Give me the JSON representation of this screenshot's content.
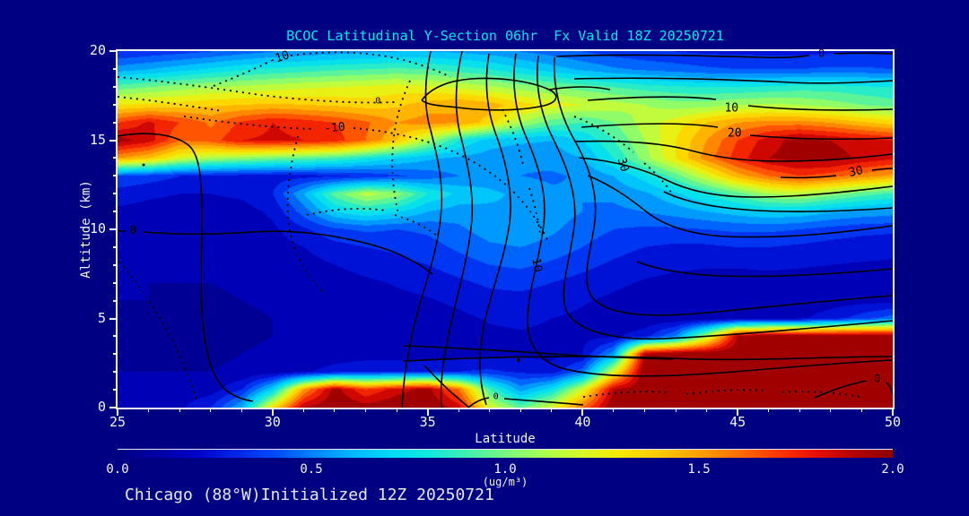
{
  "header": {
    "title": "BCOC Latitudinal Y-Section 06hr  Fx Valid 18Z 20250721",
    "title_color": "#00e8e8"
  },
  "footer": {
    "text": "Chicago (88°W)Initialized 12Z 20250721",
    "color": "#e9e9e9"
  },
  "colors": {
    "background": "#000082",
    "axis_text": "#f5f5f0",
    "frame": "#f2f2f2",
    "contour_line": "#000000"
  },
  "chart_data": {
    "type": "heatmap",
    "title": "BCOC Latitudinal Y-Section 06hr  Fx Valid 18Z 20250721",
    "xlabel": "Latitude",
    "ylabel": "Altitude (km)",
    "xlim": [
      25,
      50
    ],
    "ylim": [
      0,
      20
    ],
    "x_ticks": [
      25,
      30,
      35,
      40,
      45,
      50
    ],
    "x_minor_step": 1,
    "y_ticks": [
      0,
      5,
      10,
      15,
      20
    ],
    "y_minor_step": 1,
    "grid_lines": "off",
    "colorbar": {
      "min": 0.0,
      "max": 2.0,
      "tick_labels": [
        "0.0",
        "0.5",
        "1.0",
        "1.5",
        "2.0"
      ],
      "tick_values": [
        0.0,
        0.5,
        1.0,
        1.5,
        2.0
      ],
      "unit": "(ug/m³)",
      "position": "bottom"
    },
    "palette": [
      [
        0.0,
        "#000082"
      ],
      [
        0.2,
        "#0000c8"
      ],
      [
        0.4,
        "#0048ff"
      ],
      [
        0.5,
        "#0080ff"
      ],
      [
        0.6,
        "#00b4ff"
      ],
      [
        0.7,
        "#00d8f8"
      ],
      [
        0.8,
        "#10e8e0"
      ],
      [
        0.9,
        "#40f0b0"
      ],
      [
        1.0,
        "#78f880"
      ],
      [
        1.1,
        "#a8ff50"
      ],
      [
        1.2,
        "#d8f828"
      ],
      [
        1.3,
        "#f8e800"
      ],
      [
        1.4,
        "#ffc800"
      ],
      [
        1.5,
        "#ffa000"
      ],
      [
        1.6,
        "#ff7000"
      ],
      [
        1.7,
        "#ff3800"
      ],
      [
        1.8,
        "#e81000"
      ],
      [
        1.9,
        "#b40000"
      ],
      [
        2.0,
        "#8c0000"
      ]
    ],
    "field": {
      "units": "ug/m3",
      "lat_min": 25,
      "lat_max": 50,
      "lat_step": 1,
      "alt_max_km": 20,
      "alt_min_km": 0,
      "alt_step_km": 1,
      "order": "rows = altitude 20km (first) down to 0km (last); cols = latitude 25 to 50",
      "values": [
        [
          0.3,
          0.33,
          0.36,
          0.4,
          0.45,
          0.5,
          0.52,
          0.55,
          0.58,
          0.6,
          0.6,
          0.58,
          0.55,
          0.5,
          0.45,
          0.4,
          0.35,
          0.32,
          0.3,
          0.28,
          0.28,
          0.27,
          0.27,
          0.28,
          0.28,
          0.28
        ],
        [
          0.55,
          0.6,
          0.66,
          0.72,
          0.78,
          0.82,
          0.85,
          0.88,
          0.9,
          0.92,
          0.9,
          0.85,
          0.8,
          0.72,
          0.65,
          0.58,
          0.52,
          0.48,
          0.45,
          0.42,
          0.4,
          0.4,
          0.4,
          0.42,
          0.42,
          0.4
        ],
        [
          0.95,
          1.0,
          1.05,
          1.1,
          1.12,
          1.15,
          1.18,
          1.2,
          1.22,
          1.25,
          1.22,
          1.18,
          1.12,
          1.05,
          1.0,
          0.95,
          0.9,
          0.85,
          0.82,
          0.8,
          0.8,
          0.82,
          0.85,
          0.85,
          0.82,
          0.8
        ],
        [
          1.3,
          1.32,
          1.35,
          1.38,
          1.4,
          1.42,
          1.4,
          1.38,
          1.35,
          1.38,
          1.45,
          1.5,
          1.45,
          1.35,
          1.25,
          1.2,
          1.15,
          1.1,
          1.05,
          1.05,
          1.1,
          1.12,
          1.1,
          1.05,
          1.0,
          0.95
        ],
        [
          1.7,
          1.82,
          1.7,
          1.58,
          1.72,
          1.8,
          1.76,
          1.7,
          1.62,
          1.5,
          1.55,
          1.5,
          1.35,
          1.1,
          0.95,
          0.9,
          1.0,
          1.15,
          1.25,
          1.4,
          1.5,
          1.55,
          1.55,
          1.5,
          1.42,
          1.35
        ],
        [
          1.95,
          1.85,
          1.6,
          1.65,
          1.8,
          1.82,
          1.8,
          1.75,
          1.6,
          1.4,
          1.1,
          0.8,
          0.65,
          0.62,
          0.6,
          0.7,
          0.9,
          1.1,
          1.3,
          1.5,
          1.7,
          1.85,
          1.95,
          1.9,
          1.85,
          1.8
        ],
        [
          1.5,
          1.4,
          1.2,
          1.1,
          1.05,
          1.0,
          0.95,
          0.9,
          0.8,
          0.7,
          0.62,
          0.58,
          0.55,
          0.52,
          0.55,
          0.6,
          0.8,
          1.05,
          1.3,
          1.55,
          1.75,
          1.9,
          1.95,
          1.95,
          1.88,
          1.82
        ],
        [
          0.4,
          0.35,
          0.3,
          0.28,
          0.26,
          0.25,
          0.26,
          0.28,
          0.32,
          0.38,
          0.44,
          0.5,
          0.55,
          0.5,
          0.48,
          0.52,
          0.6,
          0.75,
          0.95,
          1.2,
          1.45,
          1.6,
          1.7,
          1.65,
          1.55,
          1.48
        ],
        [
          0.25,
          0.22,
          0.2,
          0.2,
          0.22,
          0.3,
          0.6,
          0.95,
          1.15,
          1.05,
          0.8,
          0.68,
          0.62,
          0.58,
          0.52,
          0.5,
          0.52,
          0.58,
          0.68,
          0.8,
          0.95,
          1.1,
          1.15,
          1.05,
          0.95,
          0.88
        ],
        [
          0.18,
          0.16,
          0.15,
          0.15,
          0.16,
          0.22,
          0.45,
          0.7,
          0.8,
          0.72,
          0.6,
          0.55,
          0.58,
          0.6,
          0.55,
          0.5,
          0.48,
          0.5,
          0.55,
          0.6,
          0.65,
          0.7,
          0.68,
          0.62,
          0.58,
          0.55
        ],
        [
          0.15,
          0.14,
          0.13,
          0.13,
          0.14,
          0.18,
          0.28,
          0.38,
          0.42,
          0.4,
          0.42,
          0.48,
          0.55,
          0.58,
          0.52,
          0.45,
          0.4,
          0.38,
          0.38,
          0.4,
          0.42,
          0.42,
          0.4,
          0.36,
          0.33,
          0.32
        ],
        [
          0.14,
          0.13,
          0.12,
          0.12,
          0.13,
          0.15,
          0.2,
          0.26,
          0.3,
          0.32,
          0.36,
          0.42,
          0.48,
          0.5,
          0.46,
          0.4,
          0.34,
          0.3,
          0.28,
          0.28,
          0.3,
          0.3,
          0.28,
          0.26,
          0.25,
          0.24
        ],
        [
          0.12,
          0.11,
          0.11,
          0.11,
          0.12,
          0.13,
          0.16,
          0.2,
          0.24,
          0.27,
          0.3,
          0.35,
          0.4,
          0.42,
          0.38,
          0.33,
          0.28,
          0.24,
          0.22,
          0.21,
          0.21,
          0.22,
          0.21,
          0.2,
          0.19,
          0.18
        ],
        [
          0.11,
          0.1,
          0.1,
          0.1,
          0.11,
          0.12,
          0.13,
          0.15,
          0.18,
          0.21,
          0.24,
          0.28,
          0.32,
          0.33,
          0.3,
          0.26,
          0.22,
          0.19,
          0.17,
          0.16,
          0.16,
          0.16,
          0.16,
          0.15,
          0.15,
          0.14
        ],
        [
          0.1,
          0.1,
          0.09,
          0.09,
          0.1,
          0.11,
          0.12,
          0.13,
          0.15,
          0.17,
          0.19,
          0.22,
          0.26,
          0.27,
          0.25,
          0.21,
          0.18,
          0.16,
          0.14,
          0.13,
          0.13,
          0.13,
          0.14,
          0.15,
          0.16,
          0.17
        ],
        [
          0.1,
          0.09,
          0.09,
          0.09,
          0.09,
          0.1,
          0.11,
          0.12,
          0.13,
          0.14,
          0.16,
          0.18,
          0.21,
          0.22,
          0.2,
          0.18,
          0.15,
          0.13,
          0.12,
          0.12,
          0.13,
          0.15,
          0.18,
          0.25,
          0.35,
          0.45
        ],
        [
          0.1,
          0.09,
          0.09,
          0.09,
          0.09,
          0.1,
          0.11,
          0.12,
          0.13,
          0.14,
          0.15,
          0.16,
          0.18,
          0.19,
          0.18,
          0.17,
          0.18,
          0.25,
          0.5,
          1.1,
          1.9,
          2.0,
          2.0,
          2.0,
          2.0,
          2.0
        ],
        [
          0.1,
          0.09,
          0.09,
          0.09,
          0.1,
          0.11,
          0.12,
          0.13,
          0.14,
          0.15,
          0.16,
          0.17,
          0.18,
          0.18,
          0.17,
          0.2,
          0.55,
          1.9,
          2.0,
          2.0,
          2.0,
          2.0,
          2.0,
          2.0,
          2.0,
          2.0
        ],
        [
          0.1,
          0.1,
          0.1,
          0.1,
          0.11,
          0.13,
          0.18,
          0.25,
          0.3,
          0.3,
          0.28,
          0.3,
          0.32,
          0.28,
          0.24,
          0.45,
          1.2,
          2.0,
          2.0,
          2.0,
          2.0,
          2.0,
          2.0,
          2.0,
          2.0,
          2.0
        ],
        [
          0.12,
          0.12,
          0.13,
          0.15,
          0.3,
          0.7,
          1.5,
          1.95,
          1.7,
          1.85,
          1.95,
          1.6,
          0.9,
          0.55,
          0.75,
          1.2,
          1.9,
          2.0,
          2.0,
          2.0,
          2.0,
          2.0,
          2.0,
          2.0,
          2.0,
          2.0
        ],
        [
          0.15,
          0.15,
          0.18,
          0.3,
          0.6,
          1.3,
          1.9,
          2.0,
          1.95,
          2.0,
          2.0,
          1.85,
          1.2,
          0.95,
          1.2,
          1.6,
          2.0,
          2.0,
          2.0,
          2.0,
          2.0,
          2.0,
          2.0,
          2.0,
          2.0,
          2.0
        ]
      ]
    },
    "contour_overlay": {
      "line_style": "solid = positive values, dotted = negative values",
      "labels": [
        {
          "text": "-10",
          "lat": 30.2,
          "alt": 19.6,
          "rot": -18,
          "size": 13
        },
        {
          "text": "-10",
          "lat": 32.0,
          "alt": 15.7,
          "rot": -5,
          "size": 13
        },
        {
          "text": "0",
          "lat": 25.5,
          "alt": 9.9,
          "rot": 0,
          "size": 13
        },
        {
          "text": "0",
          "lat": 33.4,
          "alt": 17.2,
          "rot": 0,
          "size": 10
        },
        {
          "text": "0",
          "lat": 47.7,
          "alt": 19.85,
          "rot": 0,
          "size": 12
        },
        {
          "text": "10",
          "lat": 44.8,
          "alt": 16.8,
          "rot": 0,
          "size": 13
        },
        {
          "text": "20",
          "lat": 44.9,
          "alt": 15.4,
          "rot": 0,
          "size": 13
        },
        {
          "text": "30",
          "lat": 41.3,
          "alt": 13.6,
          "rot": 75,
          "size": 13
        },
        {
          "text": "10",
          "lat": 38.5,
          "alt": 8.0,
          "rot": 80,
          "size": 13
        },
        {
          "text": "30",
          "lat": 48.8,
          "alt": 13.2,
          "rot": -12,
          "size": 13
        },
        {
          "text": "0",
          "lat": 49.5,
          "alt": 1.6,
          "rot": 0,
          "size": 12
        },
        {
          "text": "0",
          "lat": 37.2,
          "alt": 0.6,
          "rot": 0,
          "size": 10
        }
      ]
    }
  }
}
